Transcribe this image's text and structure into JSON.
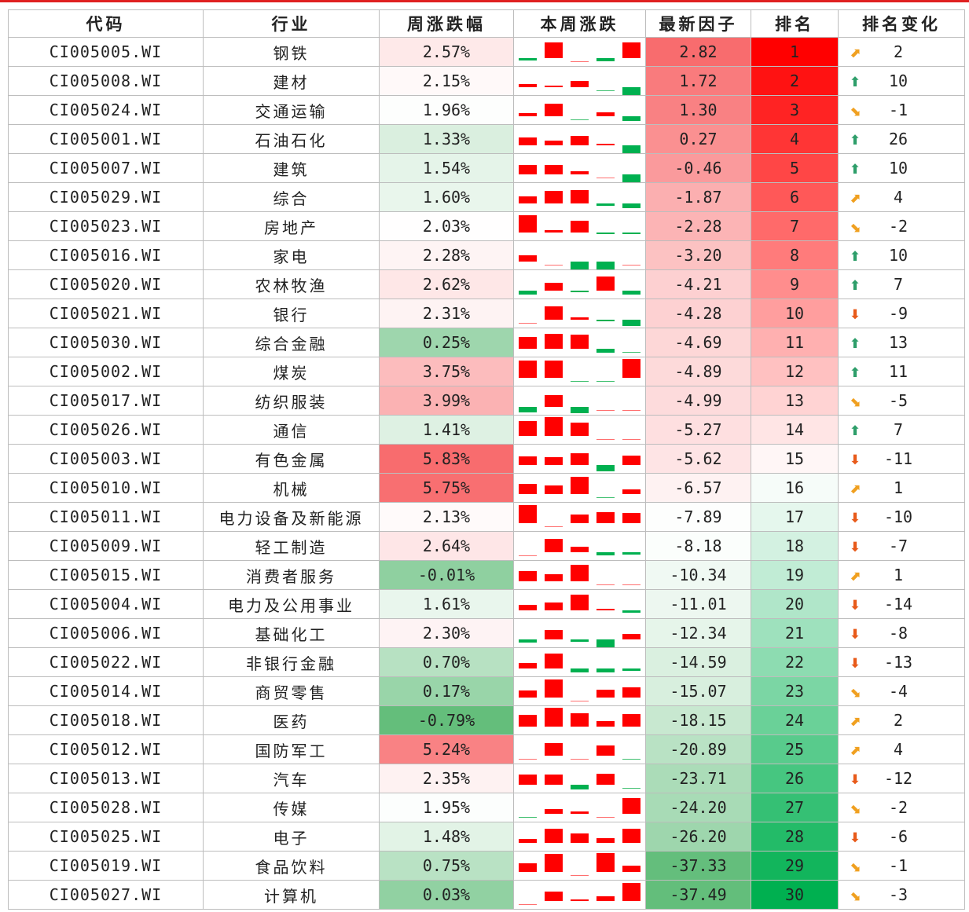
{
  "headers": {
    "code": "代码",
    "industry": "行业",
    "weekly_change": "周涨跌幅",
    "week_spark": "本周涨跌",
    "latest_factor": "最新因子",
    "rank": "排名",
    "rank_change": "排名变化"
  },
  "colors": {
    "up": "#ff0000",
    "down": "#00b050",
    "arrow_up": "#2e9e6a",
    "arrow_down": "#e85a1a",
    "arrow_upright": "#f0a020",
    "arrow_downright": "#f0a020"
  },
  "rows": [
    {
      "code": "CI005005.WI",
      "industry": "钢铁",
      "weekly": "2.57%",
      "weekly_val": 2.57,
      "spark": [
        -0.3,
        2.0,
        0.1,
        -0.35,
        2.0
      ],
      "factor": "2.82",
      "factor_val": 2.82,
      "rank": "1",
      "rank_val": 1,
      "arrow": "upright",
      "chg": "2"
    },
    {
      "code": "CI005008.WI",
      "industry": "建材",
      "weekly": "2.15%",
      "weekly_val": 2.15,
      "spark": [
        0.4,
        0.2,
        0.8,
        -0.1,
        -1.5
      ],
      "factor": "1.72",
      "factor_val": 1.72,
      "rank": "2",
      "rank_val": 2,
      "arrow": "up",
      "chg": "10"
    },
    {
      "code": "CI005024.WI",
      "industry": "交通运输",
      "weekly": "1.96%",
      "weekly_val": 1.96,
      "spark": [
        0.45,
        1.6,
        -0.1,
        0.5,
        -0.6
      ],
      "factor": "1.30",
      "factor_val": 1.3,
      "rank": "3",
      "rank_val": 3,
      "arrow": "downright",
      "chg": "-1"
    },
    {
      "code": "CI005001.WI",
      "industry": "石油石化",
      "weekly": "1.33%",
      "weekly_val": 1.33,
      "spark": [
        1.0,
        0.6,
        1.2,
        0.2,
        -1.4
      ],
      "factor": "0.27",
      "factor_val": 0.27,
      "rank": "4",
      "rank_val": 4,
      "arrow": "up",
      "chg": "26"
    },
    {
      "code": "CI005007.WI",
      "industry": "建筑",
      "weekly": "1.54%",
      "weekly_val": 1.54,
      "spark": [
        1.2,
        1.2,
        0.4,
        0.1,
        -1.1
      ],
      "factor": "-0.46",
      "factor_val": -0.46,
      "rank": "5",
      "rank_val": 5,
      "arrow": "up",
      "chg": "10"
    },
    {
      "code": "CI005029.WI",
      "industry": "综合",
      "weekly": "1.60%",
      "weekly_val": 1.6,
      "spark": [
        0.9,
        1.6,
        1.7,
        -0.3,
        -0.6
      ],
      "factor": "-1.87",
      "factor_val": -1.87,
      "rank": "6",
      "rank_val": 6,
      "arrow": "upright",
      "chg": "4"
    },
    {
      "code": "CI005023.WI",
      "industry": "房地产",
      "weekly": "2.03%",
      "weekly_val": 2.03,
      "spark": [
        2.2,
        0.3,
        1.5,
        -0.2,
        -0.2
      ],
      "factor": "-2.28",
      "factor_val": -2.28,
      "rank": "7",
      "rank_val": 7,
      "arrow": "downright",
      "chg": "-2"
    },
    {
      "code": "CI005016.WI",
      "industry": "家电",
      "weekly": "2.28%",
      "weekly_val": 2.28,
      "spark": [
        0.8,
        0.1,
        -1.0,
        -1.5,
        0.05
      ],
      "factor": "-3.20",
      "factor_val": -3.2,
      "rank": "8",
      "rank_val": 8,
      "arrow": "up",
      "chg": "10"
    },
    {
      "code": "CI005020.WI",
      "industry": "农林牧渔",
      "weekly": "2.62%",
      "weekly_val": 2.62,
      "spark": [
        -0.5,
        1.0,
        -0.2,
        1.8,
        -0.5
      ],
      "factor": "-4.21",
      "factor_val": -4.21,
      "rank": "9",
      "rank_val": 9,
      "arrow": "up",
      "chg": "7"
    },
    {
      "code": "CI005021.WI",
      "industry": "银行",
      "weekly": "2.31%",
      "weekly_val": 2.31,
      "spark": [
        0.1,
        1.7,
        0.3,
        -0.2,
        -0.8
      ],
      "factor": "-4.28",
      "factor_val": -4.28,
      "rank": "10",
      "rank_val": 10,
      "arrow": "down",
      "chg": "-9"
    },
    {
      "code": "CI005030.WI",
      "industry": "综合金融",
      "weekly": "0.25%",
      "weekly_val": 0.25,
      "spark": [
        1.5,
        1.9,
        1.8,
        -0.5,
        -0.1
      ],
      "factor": "-4.69",
      "factor_val": -4.69,
      "rank": "11",
      "rank_val": 11,
      "arrow": "up",
      "chg": "13"
    },
    {
      "code": "CI005002.WI",
      "industry": "煤炭",
      "weekly": "3.75%",
      "weekly_val": 3.75,
      "spark": [
        2.2,
        2.2,
        -0.1,
        -0.1,
        2.4
      ],
      "factor": "-4.89",
      "factor_val": -4.89,
      "rank": "12",
      "rank_val": 12,
      "arrow": "up",
      "chg": "11"
    },
    {
      "code": "CI005017.WI",
      "industry": "纺织服装",
      "weekly": "3.99%",
      "weekly_val": 3.99,
      "spark": [
        -0.7,
        1.5,
        -0.8,
        0.1,
        0.1
      ],
      "factor": "-4.99",
      "factor_val": -4.99,
      "rank": "13",
      "rank_val": 13,
      "arrow": "downright",
      "chg": "-5"
    },
    {
      "code": "CI005026.WI",
      "industry": "通信",
      "weekly": "1.41%",
      "weekly_val": 1.41,
      "spark": [
        1.9,
        2.4,
        1.7,
        0.0,
        0.05
      ],
      "factor": "-5.27",
      "factor_val": -5.27,
      "rank": "14",
      "rank_val": 14,
      "arrow": "up",
      "chg": "7"
    },
    {
      "code": "CI005003.WI",
      "industry": "有色金属",
      "weekly": "5.83%",
      "weekly_val": 5.83,
      "spark": [
        1.1,
        1.0,
        1.5,
        -0.8,
        1.2
      ],
      "factor": "-5.62",
      "factor_val": -5.62,
      "rank": "15",
      "rank_val": 15,
      "arrow": "down",
      "chg": "-11"
    },
    {
      "code": "CI005010.WI",
      "industry": "机械",
      "weekly": "5.75%",
      "weekly_val": 5.75,
      "spark": [
        1.3,
        1.1,
        2.2,
        -0.1,
        0.6
      ],
      "factor": "-6.57",
      "factor_val": -6.57,
      "rank": "16",
      "rank_val": 16,
      "arrow": "upright",
      "chg": "1"
    },
    {
      "code": "CI005011.WI",
      "industry": "电力设备及新能源",
      "weekly": "2.13%",
      "weekly_val": 2.13,
      "spark": [
        2.3,
        0.0,
        1.1,
        1.4,
        1.3
      ],
      "factor": "-7.89",
      "factor_val": -7.89,
      "rank": "17",
      "rank_val": 17,
      "arrow": "down",
      "chg": "-10"
    },
    {
      "code": "CI005009.WI",
      "industry": "轻工制造",
      "weekly": "2.64%",
      "weekly_val": 2.64,
      "spark": [
        0.1,
        1.7,
        0.7,
        -0.4,
        -0.3
      ],
      "factor": "-8.18",
      "factor_val": -8.18,
      "rank": "18",
      "rank_val": 18,
      "arrow": "down",
      "chg": "-7"
    },
    {
      "code": "CI005015.WI",
      "industry": "消费者服务",
      "weekly": "-0.01%",
      "weekly_val": -0.01,
      "spark": [
        1.3,
        0.9,
        2.1,
        0.1,
        0.0
      ],
      "factor": "-10.34",
      "factor_val": -10.34,
      "rank": "19",
      "rank_val": 19,
      "arrow": "upright",
      "chg": "1"
    },
    {
      "code": "CI005004.WI",
      "industry": "电力及公用事业",
      "weekly": "1.61%",
      "weekly_val": 1.61,
      "spark": [
        0.7,
        1.0,
        2.0,
        0.25,
        -0.25
      ],
      "factor": "-11.01",
      "factor_val": -11.01,
      "rank": "20",
      "rank_val": 20,
      "arrow": "down",
      "chg": "-14"
    },
    {
      "code": "CI005006.WI",
      "industry": "基础化工",
      "weekly": "2.30%",
      "weekly_val": 2.3,
      "spark": [
        -0.4,
        1.2,
        -0.3,
        -1.0,
        0.7
      ],
      "factor": "-12.34",
      "factor_val": -12.34,
      "rank": "21",
      "rank_val": 21,
      "arrow": "down",
      "chg": "-8"
    },
    {
      "code": "CI005022.WI",
      "industry": "非银行金融",
      "weekly": "0.70%",
      "weekly_val": 0.7,
      "spark": [
        0.7,
        1.9,
        -0.5,
        -0.5,
        -0.3
      ],
      "factor": "-14.59",
      "factor_val": -14.59,
      "rank": "22",
      "rank_val": 22,
      "arrow": "down",
      "chg": "-13"
    },
    {
      "code": "CI005014.WI",
      "industry": "商贸零售",
      "weekly": "0.17%",
      "weekly_val": 0.17,
      "spark": [
        0.9,
        2.3,
        0.1,
        1.0,
        1.3
      ],
      "factor": "-15.07",
      "factor_val": -15.07,
      "rank": "23",
      "rank_val": 23,
      "arrow": "downright",
      "chg": "-4"
    },
    {
      "code": "CI005018.WI",
      "industry": "医药",
      "weekly": "-0.79%",
      "weekly_val": -0.79,
      "spark": [
        1.5,
        2.4,
        1.7,
        0.7,
        1.6
      ],
      "factor": "-18.15",
      "factor_val": -18.15,
      "rank": "24",
      "rank_val": 24,
      "arrow": "upright",
      "chg": "2"
    },
    {
      "code": "CI005012.WI",
      "industry": "国防军工",
      "weekly": "5.24%",
      "weekly_val": 5.24,
      "spark": [
        0.05,
        1.6,
        0.1,
        1.3,
        -0.1
      ],
      "factor": "-20.89",
      "factor_val": -20.89,
      "rank": "25",
      "rank_val": 25,
      "arrow": "upright",
      "chg": "4"
    },
    {
      "code": "CI005013.WI",
      "industry": "汽车",
      "weekly": "2.35%",
      "weekly_val": 2.35,
      "spark": [
        1.3,
        1.3,
        -0.6,
        1.4,
        -0.1
      ],
      "factor": "-23.71",
      "factor_val": -23.71,
      "rank": "26",
      "rank_val": 26,
      "arrow": "down",
      "chg": "-12"
    },
    {
      "code": "CI005028.WI",
      "industry": "传媒",
      "weekly": "1.95%",
      "weekly_val": 1.95,
      "spark": [
        -0.1,
        0.6,
        0.3,
        0.1,
        2.0
      ],
      "factor": "-24.20",
      "factor_val": -24.2,
      "rank": "27",
      "rank_val": 27,
      "arrow": "downright",
      "chg": "-2"
    },
    {
      "code": "CI005025.WI",
      "industry": "电子",
      "weekly": "1.48%",
      "weekly_val": 1.48,
      "spark": [
        0.5,
        1.8,
        1.2,
        0.6,
        1.8
      ],
      "factor": "-26.20",
      "factor_val": -26.2,
      "rank": "28",
      "rank_val": 28,
      "arrow": "down",
      "chg": "-6"
    },
    {
      "code": "CI005019.WI",
      "industry": "食品饮料",
      "weekly": "0.75%",
      "weekly_val": 0.75,
      "spark": [
        1.1,
        2.3,
        0.0,
        2.4,
        0.8
      ],
      "factor": "-37.33",
      "factor_val": -37.33,
      "rank": "29",
      "rank_val": 29,
      "arrow": "downright",
      "chg": "-1"
    },
    {
      "code": "CI005027.WI",
      "industry": "计算机",
      "weekly": "0.03%",
      "weekly_val": 0.03,
      "spark": [
        0.0,
        1.2,
        0.2,
        0.6,
        2.3
      ],
      "factor": "-37.49",
      "factor_val": -37.49,
      "rank": "30",
      "rank_val": 30,
      "arrow": "downright",
      "chg": "-3"
    }
  ]
}
